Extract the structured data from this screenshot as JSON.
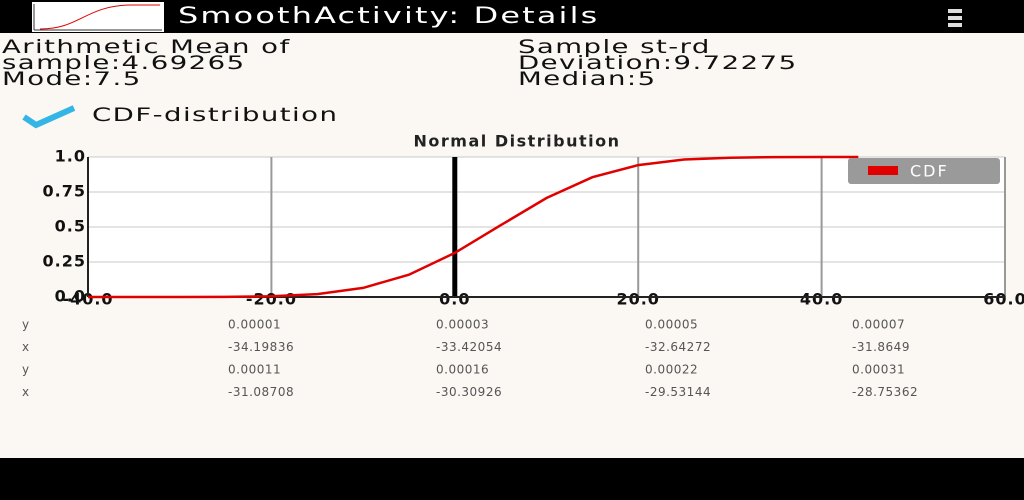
{
  "app_bar": {
    "title": "SmoothActivity:  Details"
  },
  "stats": {
    "left": [
      "Arithmetic Mean of",
      "sample:4.69265",
      "Mode:7.5"
    ],
    "right": [
      "Sample st-rd",
      "Deviation:9.72275",
      "Median:5"
    ]
  },
  "checkbox": {
    "label": "CDF-distribution",
    "checked": true
  },
  "chart_data": {
    "type": "line",
    "title": "Normal Distribution",
    "x": [
      -40,
      -35,
      -30,
      -25,
      -20,
      -15,
      -10,
      -5,
      0,
      5,
      10,
      15,
      20,
      25,
      30,
      35,
      40,
      44
    ],
    "series": [
      {
        "name": "CDF",
        "color": "#e00000",
        "values": [
          2e-06,
          2e-05,
          0.0002,
          0.001,
          0.006,
          0.021,
          0.065,
          0.159,
          0.315,
          0.513,
          0.707,
          0.856,
          0.942,
          0.982,
          0.995,
          0.999,
          1.0,
          1.0
        ]
      }
    ],
    "xlim": [
      -40,
      60
    ],
    "xticks": [
      {
        "value": -40,
        "label": "-40.0"
      },
      {
        "value": -20,
        "label": "-20.0"
      },
      {
        "value": 0,
        "label": "0.0"
      },
      {
        "value": 20,
        "label": "20.0"
      },
      {
        "value": 40,
        "label": "40.0"
      },
      {
        "value": 60,
        "label": "60.0"
      }
    ],
    "ylim": [
      0,
      1
    ],
    "yticks": [
      {
        "value": 0,
        "label": "0.0"
      },
      0.25,
      0.5,
      0.75,
      {
        "value": 1,
        "label": "1.0"
      }
    ],
    "grid": true,
    "legend": "upper right"
  },
  "table": {
    "rows": [
      [
        "y",
        "0.00001",
        "0.00003",
        "0.00005",
        "0.00007"
      ],
      [
        "x",
        "-34.19836",
        "-33.42054",
        "-32.64272",
        "-31.8649"
      ],
      [
        "y",
        "0.00011",
        "0.00016",
        "0.00022",
        "0.00031"
      ],
      [
        "x",
        "-31.08708",
        "-30.30926",
        "-29.53144",
        "-28.75362"
      ]
    ]
  }
}
